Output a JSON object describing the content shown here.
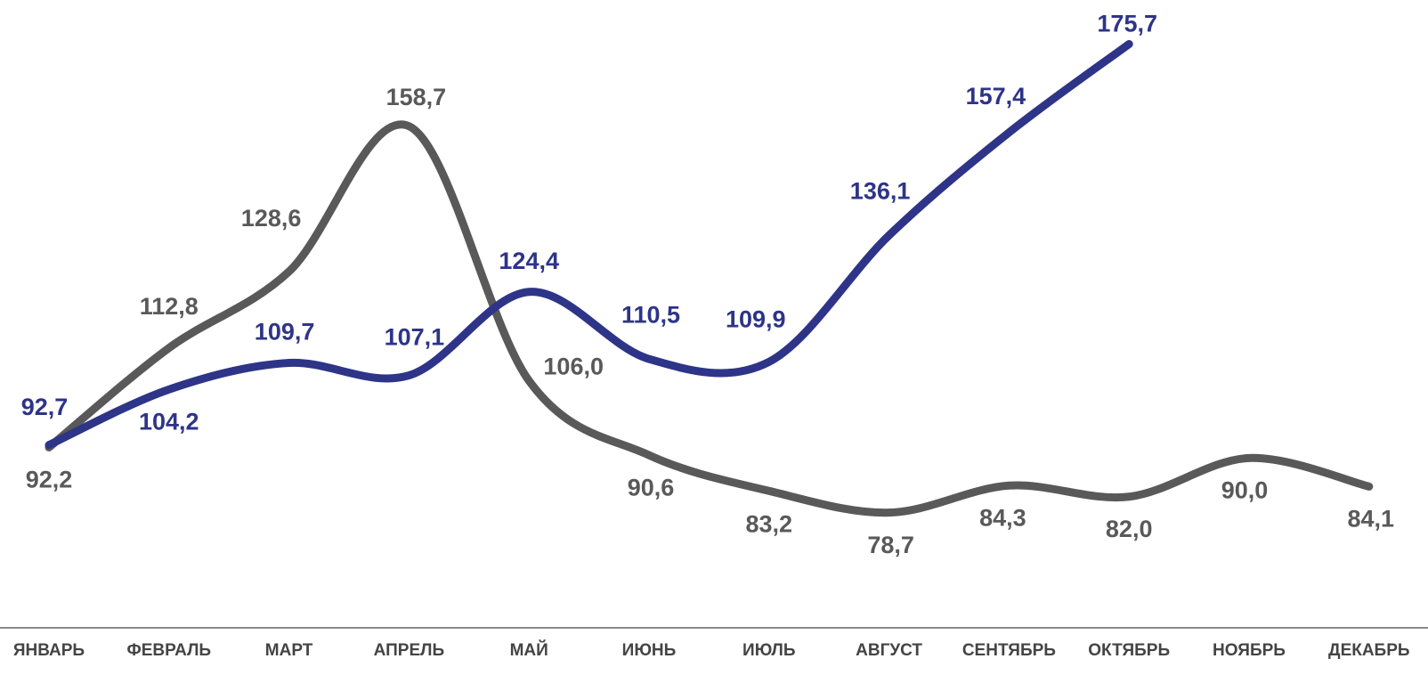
{
  "chart_data": {
    "type": "line",
    "categories": [
      "ЯНВАРЬ",
      "ФЕВРАЛЬ",
      "МАРТ",
      "АПРЕЛЬ",
      "МАЙ",
      "ИЮНЬ",
      "ИЮЛЬ",
      "АВГУСТ",
      "СЕНТЯБРЬ",
      "ОКТЯБРЬ",
      "НОЯБРЬ",
      "ДЕКАБРЬ"
    ],
    "series": [
      {
        "color": "#595959",
        "values": [
          92.2,
          112.8,
          128.6,
          158.7,
          106.0,
          90.6,
          83.2,
          78.7,
          84.3,
          82.0,
          90.0,
          84.1
        ],
        "value_labels": [
          "92,2",
          "112,8",
          "128,6",
          "158,7",
          "106,0",
          "90,6",
          "83,2",
          "78,7",
          "84,3",
          "82,0",
          "90,0",
          "84,1"
        ]
      },
      {
        "color": "#2e3487",
        "values": [
          92.7,
          104.2,
          109.7,
          107.1,
          124.4,
          110.5,
          109.9,
          136.1,
          157.4,
          175.7,
          null,
          null
        ],
        "value_labels": [
          "92,7",
          "104,2",
          "109,7",
          "107,1",
          "124,4",
          "110,5",
          "109,9",
          "136,1",
          "157,4",
          "175,7",
          null,
          null
        ]
      }
    ],
    "ylim": [
      65,
      178
    ]
  }
}
